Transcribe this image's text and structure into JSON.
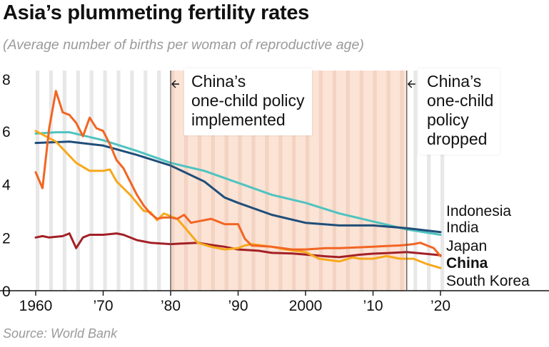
{
  "title": "Asia’s plummeting fertility rates",
  "subtitle": "(Average number of births per woman of reproductive age)",
  "source": "Source: World Bank",
  "annotations": {
    "implemented": [
      "China’s",
      "one-child policy",
      "implemented"
    ],
    "dropped": [
      "China’s",
      "one-child",
      "policy",
      "dropped"
    ]
  },
  "colors": {
    "Indonesia": "#1f4e79",
    "India": "#4fc3c0",
    "Japan": "#a32026",
    "China": "#f26522",
    "South Korea": "#f7a81b",
    "policy_band": "#fbe3d6",
    "stripe_light": "#e8e8e8",
    "stripe_light_in_band": "#f3d3c2",
    "policy_line": "#555555"
  },
  "chart_data": {
    "type": "line",
    "title": "Asia’s plummeting fertility rates",
    "ylabel": "Average number of births per woman of reproductive age",
    "xlim": [
      1960,
      2020
    ],
    "ylim": [
      0,
      8
    ],
    "yticks": [
      0,
      2,
      4,
      6,
      8
    ],
    "ytick_labels": [
      "0",
      "2",
      "4",
      "6",
      "8"
    ],
    "xticks": [
      1960,
      1970,
      1980,
      1990,
      2000,
      2010,
      2020
    ],
    "xtick_labels": [
      "1960",
      "’70",
      "’80",
      "’90",
      "2000",
      "’10",
      "’20"
    ],
    "policy_period": [
      1980,
      2015
    ],
    "series": [
      {
        "name": "Indonesia",
        "points": [
          [
            1960,
            5.55
          ],
          [
            1965,
            5.6
          ],
          [
            1970,
            5.45
          ],
          [
            1975,
            5.1
          ],
          [
            1980,
            4.7
          ],
          [
            1985,
            4.1
          ],
          [
            1988,
            3.5
          ],
          [
            1990,
            3.3
          ],
          [
            1995,
            2.85
          ],
          [
            2000,
            2.55
          ],
          [
            2005,
            2.45
          ],
          [
            2010,
            2.45
          ],
          [
            2015,
            2.35
          ],
          [
            2020,
            2.2
          ]
        ]
      },
      {
        "name": "India",
        "points": [
          [
            1960,
            5.9
          ],
          [
            1963,
            5.95
          ],
          [
            1965,
            5.95
          ],
          [
            1970,
            5.65
          ],
          [
            1975,
            5.25
          ],
          [
            1980,
            4.8
          ],
          [
            1985,
            4.5
          ],
          [
            1990,
            4.05
          ],
          [
            1995,
            3.6
          ],
          [
            2000,
            3.3
          ],
          [
            2005,
            2.9
          ],
          [
            2010,
            2.6
          ],
          [
            2015,
            2.3
          ],
          [
            2020,
            2.1
          ]
        ]
      },
      {
        "name": "Japan",
        "points": [
          [
            1960,
            2.0
          ],
          [
            1961,
            2.05
          ],
          [
            1962,
            2.0
          ],
          [
            1964,
            2.05
          ],
          [
            1965,
            2.15
          ],
          [
            1966,
            1.6
          ],
          [
            1967,
            2.0
          ],
          [
            1968,
            2.1
          ],
          [
            1970,
            2.1
          ],
          [
            1972,
            2.15
          ],
          [
            1973,
            2.1
          ],
          [
            1975,
            1.9
          ],
          [
            1977,
            1.8
          ],
          [
            1980,
            1.75
          ],
          [
            1984,
            1.8
          ],
          [
            1986,
            1.72
          ],
          [
            1988,
            1.65
          ],
          [
            1990,
            1.55
          ],
          [
            1993,
            1.5
          ],
          [
            1995,
            1.42
          ],
          [
            1998,
            1.4
          ],
          [
            2000,
            1.36
          ],
          [
            2003,
            1.29
          ],
          [
            2005,
            1.26
          ],
          [
            2008,
            1.35
          ],
          [
            2010,
            1.39
          ],
          [
            2012,
            1.41
          ],
          [
            2015,
            1.45
          ],
          [
            2019,
            1.36
          ],
          [
            2020,
            1.33
          ]
        ]
      },
      {
        "name": "China",
        "points": [
          [
            1960,
            4.45
          ],
          [
            1961,
            3.85
          ],
          [
            1962,
            6.1
          ],
          [
            1963,
            7.5
          ],
          [
            1964,
            6.7
          ],
          [
            1965,
            6.6
          ],
          [
            1966,
            6.3
          ],
          [
            1967,
            5.8
          ],
          [
            1968,
            6.5
          ],
          [
            1969,
            6.1
          ],
          [
            1970,
            6.0
          ],
          [
            1971,
            5.5
          ],
          [
            1972,
            4.9
          ],
          [
            1973,
            4.6
          ],
          [
            1974,
            4.1
          ],
          [
            1975,
            3.6
          ],
          [
            1976,
            3.2
          ],
          [
            1977,
            2.9
          ],
          [
            1978,
            2.7
          ],
          [
            1979,
            2.75
          ],
          [
            1980,
            2.75
          ],
          [
            1981,
            2.7
          ],
          [
            1982,
            2.85
          ],
          [
            1983,
            2.55
          ],
          [
            1984,
            2.6
          ],
          [
            1985,
            2.65
          ],
          [
            1986,
            2.7
          ],
          [
            1987,
            2.6
          ],
          [
            1988,
            2.5
          ],
          [
            1990,
            2.5
          ],
          [
            1991,
            1.95
          ],
          [
            1992,
            1.7
          ],
          [
            1995,
            1.65
          ],
          [
            1998,
            1.55
          ],
          [
            2000,
            1.55
          ],
          [
            2003,
            1.6
          ],
          [
            2005,
            1.6
          ],
          [
            2010,
            1.65
          ],
          [
            2012,
            1.68
          ],
          [
            2014,
            1.7
          ],
          [
            2016,
            1.75
          ],
          [
            2017,
            1.8
          ],
          [
            2018,
            1.7
          ],
          [
            2019,
            1.6
          ],
          [
            2020,
            1.3
          ]
        ]
      },
      {
        "name": "South Korea",
        "points": [
          [
            1960,
            6.0
          ],
          [
            1963,
            5.6
          ],
          [
            1966,
            4.8
          ],
          [
            1968,
            4.5
          ],
          [
            1970,
            4.5
          ],
          [
            1971,
            4.55
          ],
          [
            1972,
            4.1
          ],
          [
            1974,
            3.6
          ],
          [
            1976,
            3.0
          ],
          [
            1977,
            2.95
          ],
          [
            1978,
            2.65
          ],
          [
            1979,
            2.9
          ],
          [
            1980,
            2.8
          ],
          [
            1981,
            2.7
          ],
          [
            1982,
            2.4
          ],
          [
            1983,
            2.1
          ],
          [
            1984,
            1.8
          ],
          [
            1986,
            1.65
          ],
          [
            1988,
            1.55
          ],
          [
            1990,
            1.6
          ],
          [
            1991,
            1.7
          ],
          [
            1992,
            1.75
          ],
          [
            1995,
            1.65
          ],
          [
            1997,
            1.55
          ],
          [
            2000,
            1.45
          ],
          [
            2002,
            1.2
          ],
          [
            2005,
            1.1
          ],
          [
            2007,
            1.25
          ],
          [
            2008,
            1.2
          ],
          [
            2010,
            1.2
          ],
          [
            2012,
            1.3
          ],
          [
            2014,
            1.2
          ],
          [
            2016,
            1.2
          ],
          [
            2018,
            1.0
          ],
          [
            2020,
            0.85
          ]
        ]
      }
    ],
    "legend": [
      {
        "name": "Indonesia",
        "label": "Indonesia"
      },
      {
        "name": "India",
        "label": "India"
      },
      {
        "name": "Japan",
        "label": "Japan"
      },
      {
        "name": "China",
        "label": "China"
      },
      {
        "name": "South Korea",
        "label": "South Korea"
      }
    ]
  }
}
